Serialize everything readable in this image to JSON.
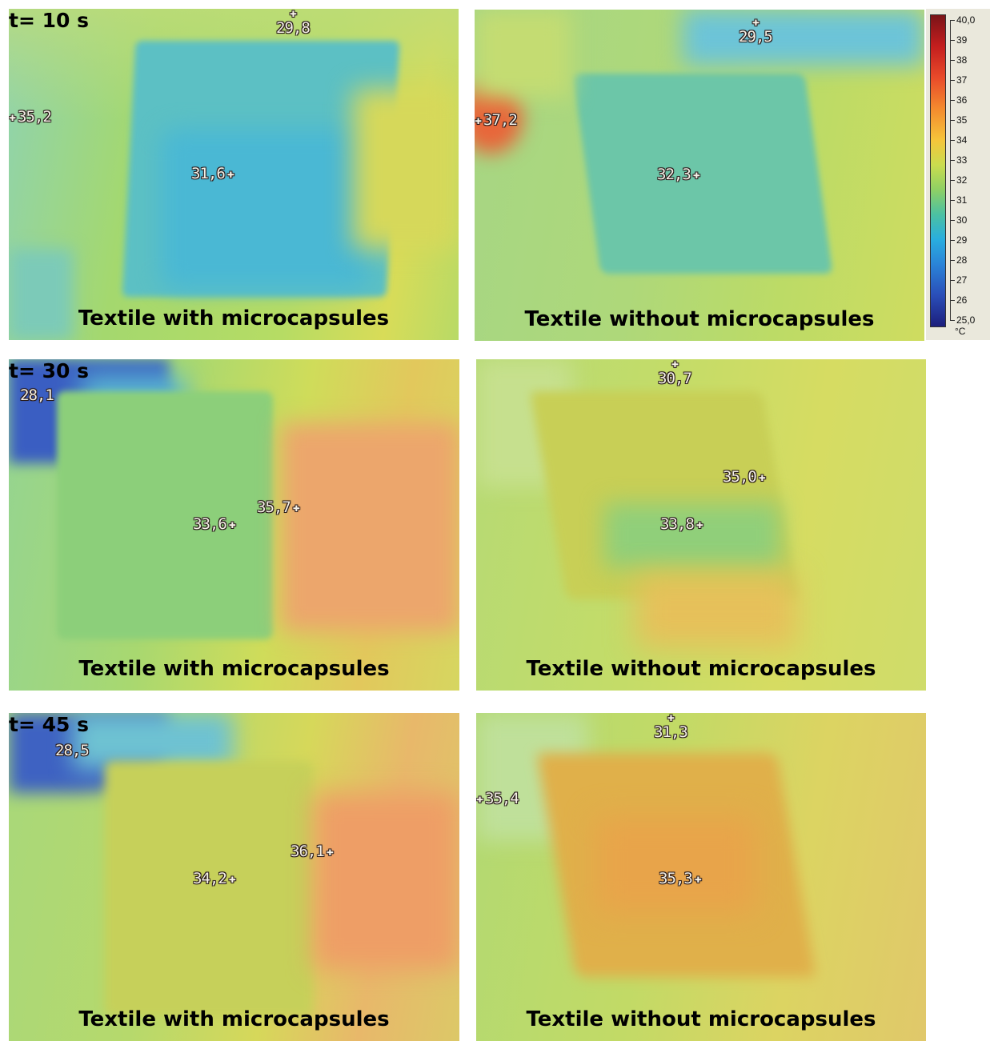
{
  "panels": [
    {
      "label": "Textile with microcapsules",
      "time": "t= 10 s",
      "markers": [
        "29,8",
        "35,2",
        "31,6"
      ]
    },
    {
      "label": "Textile without microcapsules",
      "markers": [
        "29,5",
        "37,2",
        "32,3"
      ]
    },
    {
      "label": "Textile with microcapsules",
      "time": "t= 30 s",
      "markers": [
        "28,1",
        "35,7",
        "33,6"
      ]
    },
    {
      "label": "Textile without microcapsules",
      "markers": [
        "30,7",
        "35,0",
        "33,8"
      ]
    },
    {
      "label": "Textile with microcapsules",
      "time": "t= 45 s",
      "markers": [
        "28,5",
        "36,1",
        "34,2"
      ]
    },
    {
      "label": "Textile without microcapsules",
      "markers": [
        "31,3",
        "35,4",
        "35,3"
      ]
    }
  ],
  "color_scale": {
    "ticks": [
      "40,0",
      "39",
      "38",
      "37",
      "36",
      "35",
      "34",
      "33",
      "32",
      "31",
      "30",
      "29",
      "28",
      "27",
      "26",
      "25,0"
    ],
    "unit": "°C",
    "colors": {
      "max": "#7a1418",
      "hot": "#e84a2a",
      "warm": "#f6c43a",
      "mid": "#8fd064",
      "cool": "#29aede",
      "min": "#1c1e7c"
    }
  }
}
